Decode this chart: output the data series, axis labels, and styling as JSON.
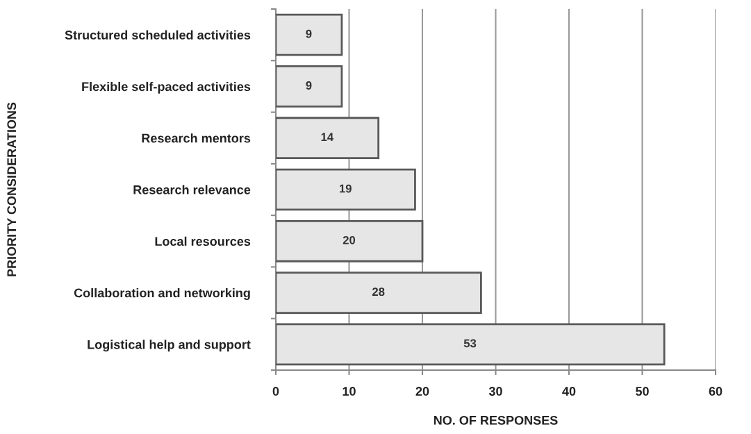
{
  "chart_data": {
    "type": "bar",
    "orientation": "horizontal",
    "xlabel": "NO. OF RESPONSES",
    "ylabel": "PRIORITY CONSIDERATIONS",
    "categories": [
      "Structured scheduled activities",
      "Flexible self-paced activities",
      "Research mentors",
      "Research relevance",
      "Local resources",
      "Collaboration and networking",
      "Logistical help and support"
    ],
    "values": [
      9,
      9,
      14,
      19,
      20,
      28,
      53
    ],
    "color": "#e6e6e6",
    "xlim": [
      0,
      60
    ],
    "xticks": [
      0,
      10,
      20,
      30,
      40,
      50,
      60
    ],
    "grid": "x",
    "data_labels": true,
    "legend": false
  }
}
